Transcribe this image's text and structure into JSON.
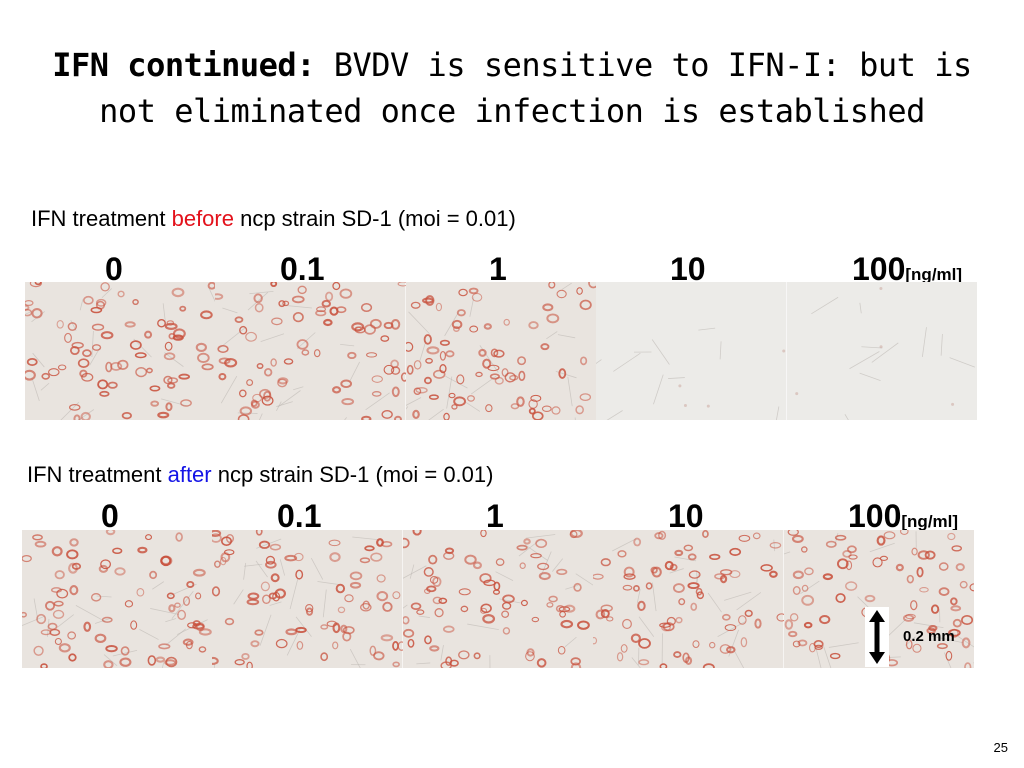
{
  "slide": {
    "title_bold": "IFN continued:",
    "title_rest": " BVDV is sensitive to IFN-I: but is not eliminated once infection is established",
    "slide_number": "25"
  },
  "row_before": {
    "caption_pre": "IFN treatment ",
    "caption_highlight": "before",
    "caption_post": " ncp strain SD-1 (moi = 0.01)",
    "highlight_color": "#e3111b",
    "concentrations": [
      "0",
      "0.1",
      "1",
      "10",
      "100"
    ],
    "unit": "[ng/ml]",
    "panels": [
      {
        "name": "micrograph-0",
        "stain_level": "high"
      },
      {
        "name": "micrograph-0.1",
        "stain_level": "high"
      },
      {
        "name": "micrograph-1",
        "stain_level": "high"
      },
      {
        "name": "micrograph-10",
        "stain_level": "none"
      },
      {
        "name": "micrograph-100",
        "stain_level": "none"
      }
    ]
  },
  "row_after": {
    "caption_pre": "IFN treatment ",
    "caption_highlight": "after",
    "caption_post": " ncp strain SD-1 (moi = 0.01)",
    "highlight_color": "#1414e6",
    "concentrations": [
      "0",
      "0.1",
      "1",
      "10",
      "100"
    ],
    "unit": "[ng/ml]",
    "panels": [
      {
        "name": "micrograph-0",
        "stain_level": "high"
      },
      {
        "name": "micrograph-0.1",
        "stain_level": "high"
      },
      {
        "name": "micrograph-1",
        "stain_level": "high"
      },
      {
        "name": "micrograph-10",
        "stain_level": "high"
      },
      {
        "name": "micrograph-100",
        "stain_level": "high"
      }
    ]
  },
  "scale_bar": {
    "label": "0.2 mm",
    "icon": "double-arrow-icon"
  },
  "colors": {
    "stain": "#c8503c",
    "tissue_background": "#e9e4df"
  }
}
